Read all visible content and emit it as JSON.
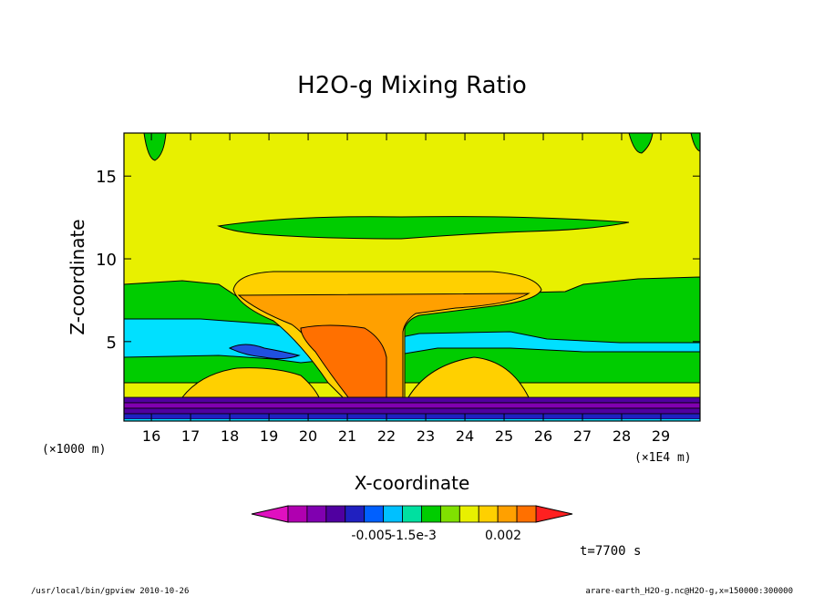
{
  "chart_data": {
    "type": "contour",
    "title": "H2O-g Mixing Ratio",
    "xlabel": "X-coordinate",
    "ylabel": "Z-coordinate",
    "x_unit": "(×1E4 m)",
    "y_unit": "(×1000 m)",
    "xlim": [
      15.3,
      30.0
    ],
    "ylim": [
      0.2,
      17.6
    ],
    "x_ticks": [
      16,
      17,
      18,
      19,
      20,
      21,
      22,
      23,
      24,
      25,
      26,
      27,
      28,
      29
    ],
    "y_ticks": [
      5,
      10,
      15
    ],
    "colorbar": {
      "colors": [
        "#e010c0",
        "#b000b0",
        "#8000b0",
        "#5000a0",
        "#2020c0",
        "#0060ff",
        "#00c0ff",
        "#00e0a0",
        "#00cc00",
        "#80e000",
        "#e8f000",
        "#ffd000",
        "#ffa000",
        "#ff7000",
        "#ff2020"
      ],
      "labels": [
        "-0.005",
        "-1.5e-3",
        "0.002"
      ]
    },
    "time_label": "t=7700 s"
  },
  "footer": {
    "left": "/usr/local/bin/gpview  2010-10-26",
    "right": "arare-earth_H2O-g.nc@H2O-g,x=150000:300000"
  }
}
